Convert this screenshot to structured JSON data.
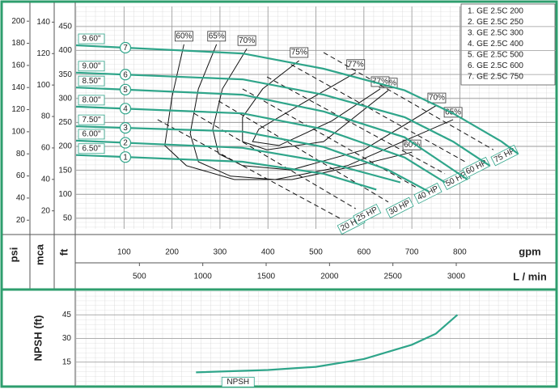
{
  "chart_data": [
    {
      "type": "line",
      "xlim": [
        0,
        1000
      ],
      "xticks": [
        100,
        200,
        300,
        400,
        500,
        600,
        700,
        800
      ],
      "xlabel": "gpm",
      "x2lim": [
        0,
        3785
      ],
      "x2ticks": [
        500,
        1000,
        1500,
        2000,
        2500,
        3000
      ],
      "x2label": "L / min",
      "ylim": [
        28,
        492
      ],
      "yticks": [
        50,
        100,
        150,
        200,
        250,
        300,
        350,
        400,
        450
      ],
      "ylabel": "ft",
      "extra_y_axes": [
        {
          "label": "psi",
          "lim": [
            12.14,
            213.3
          ],
          "ticks": [
            20,
            40,
            60,
            80,
            100,
            120,
            140,
            160,
            180,
            200
          ]
        },
        {
          "label": "mca",
          "lim": [
            8.53,
            149.96
          ],
          "ticks": [
            20,
            40,
            60,
            80,
            100,
            120,
            140
          ]
        }
      ],
      "grid": true,
      "series": [
        {
          "name": "1. GE 2.5C 200",
          "number": "1",
          "impeller": "6.50\"",
          "color": "#2fa58a",
          "x": [
            0,
            347,
            516,
            626
          ],
          "y": [
            182,
            168,
            143,
            110
          ]
        },
        {
          "name": "2. GE 2.5C 250",
          "number": "2",
          "impeller": "6.00\"",
          "color": "#2fa58a",
          "x": [
            0,
            347,
            516,
            676
          ],
          "y": [
            212,
            197,
            168,
            125
          ]
        },
        {
          "name": "3. GE 2.5C 300",
          "number": "3",
          "impeller": "7.50\"",
          "color": "#2fa58a",
          "x": [
            0,
            347,
            516,
            651,
            735
          ],
          "y": [
            242,
            231,
            199,
            151,
            106
          ]
        },
        {
          "name": "4. GE 2.5C 400",
          "number": "4",
          "impeller": "8.00\"",
          "color": "#2fa58a",
          "x": [
            0,
            347,
            516,
            685,
            769
          ],
          "y": [
            283,
            269,
            236,
            177,
            125
          ]
        },
        {
          "name": "5. GE 2.5C 500",
          "number": "5",
          "impeller": "8.50\"",
          "color": "#2fa58a",
          "x": [
            0,
            347,
            516,
            685,
            816
          ],
          "y": [
            323,
            308,
            273,
            219,
            131
          ]
        },
        {
          "name": "6. GE 2.5C 600",
          "number": "6",
          "impeller": "9.00\"",
          "color": "#2fa58a",
          "x": [
            0,
            347,
            516,
            685,
            786,
            862
          ],
          "y": [
            354,
            340,
            308,
            261,
            210,
            160
          ]
        },
        {
          "name": "7. GE 2.5C 750",
          "number": "7",
          "impeller": "9.60\"",
          "color": "#2fa58a",
          "x": [
            0,
            347,
            516,
            685,
            786,
            887,
            921
          ],
          "y": [
            411,
            394,
            362,
            317,
            269,
            210,
            185
          ]
        }
      ],
      "efficiency_curves": [
        {
          "name": "60%",
          "x": [
            225,
            200,
            185,
            230,
            330,
            450,
            585,
            700
          ],
          "y": [
            413,
            303,
            202,
            160,
            131,
            131,
            160,
            188
          ]
        },
        {
          "name": "65%",
          "x": [
            293,
            255,
            238,
            255,
            322,
            415,
            566,
            786
          ],
          "y": [
            413,
            320,
            227,
            168,
            138,
            131,
            160,
            256
          ]
        },
        {
          "name": "70%",
          "x": [
            356,
            305,
            285,
            297,
            347,
            448,
            600,
            752
          ],
          "y": [
            404,
            320,
            236,
            185,
            160,
            151,
            193,
            286
          ]
        },
        {
          "name": "75%",
          "x": [
            465,
            389,
            347,
            347,
            398,
            516,
            651
          ],
          "y": [
            379,
            320,
            261,
            210,
            193,
            210,
            317
          ]
        },
        {
          "name": "77%",
          "x": [
            583,
            474,
            381,
            368,
            423,
            533,
            634
          ],
          "y": [
            354,
            291,
            236,
            210,
            202,
            253,
            320
          ]
        }
      ],
      "power_lines": [
        {
          "name": "20 HP",
          "x": [
            170,
            550
          ],
          "y": [
            256,
            50
          ]
        },
        {
          "name": "25 HP",
          "x": [
            246,
            583
          ],
          "y": [
            269,
            70
          ]
        },
        {
          "name": "30 HP",
          "x": [
            297,
            651
          ],
          "y": [
            295,
            84
          ]
        },
        {
          "name": "40 HP",
          "x": [
            347,
            710
          ],
          "y": [
            320,
            114
          ]
        },
        {
          "name": "50 HP",
          "x": [
            398,
            769
          ],
          "y": [
            345,
            143
          ]
        },
        {
          "name": "60 HP",
          "x": [
            448,
            811
          ],
          "y": [
            371,
            168
          ]
        },
        {
          "name": "75 HP",
          "x": [
            516,
            870
          ],
          "y": [
            396,
            193
          ]
        }
      ]
    },
    {
      "type": "line",
      "xlim": [
        0,
        1000
      ],
      "ylim": [
        0,
        60
      ],
      "yticks": [
        15,
        30,
        45
      ],
      "ylabel": "NPSH (ft)",
      "grid": true,
      "series": [
        {
          "name": "NPSH",
          "color": "#2fa58a",
          "x": [
            250,
            400,
            500,
            600,
            700,
            750,
            795
          ],
          "y": [
            8.5,
            10,
            12,
            17,
            26,
            33,
            45
          ]
        }
      ]
    }
  ]
}
